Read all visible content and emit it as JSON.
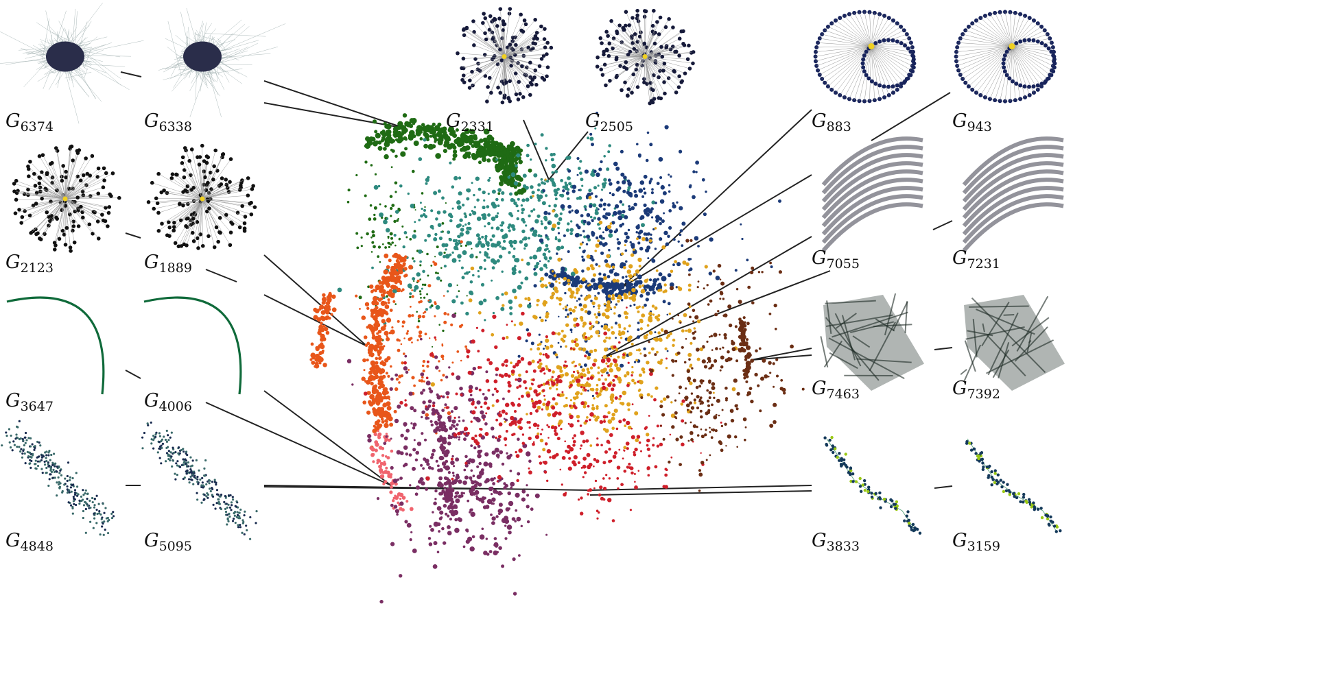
{
  "thumbnails": [
    {
      "id": "g6374",
      "label": "G",
      "sub": "6374",
      "style": "hairball",
      "color": "#2a2d4a"
    },
    {
      "id": "g6338",
      "label": "G",
      "sub": "6338",
      "style": "hairball",
      "color": "#2a2d4a"
    },
    {
      "id": "g2331",
      "label": "G",
      "sub": "2331",
      "style": "star",
      "color": "#161a3a"
    },
    {
      "id": "g2505",
      "label": "G",
      "sub": "2505",
      "style": "star",
      "color": "#161a3a"
    },
    {
      "id": "g883",
      "label": "G",
      "sub": "883",
      "style": "loops",
      "color": "#18245c"
    },
    {
      "id": "g943",
      "label": "G",
      "sub": "943",
      "style": "loops",
      "color": "#18245c"
    },
    {
      "id": "g2123",
      "label": "G",
      "sub": "2123",
      "style": "star",
      "color": "#111111"
    },
    {
      "id": "g1889",
      "label": "G",
      "sub": "1889",
      "style": "star",
      "color": "#111111"
    },
    {
      "id": "g7055",
      "label": "G",
      "sub": "7055",
      "style": "bands",
      "color": "#3a3a48"
    },
    {
      "id": "g7231",
      "label": "G",
      "sub": "7231",
      "style": "bands",
      "color": "#3a3a48"
    },
    {
      "id": "g3647",
      "label": "G",
      "sub": "3647",
      "style": "curve",
      "color": "#0f6a3a"
    },
    {
      "id": "g4006",
      "label": "G",
      "sub": "4006",
      "style": "curve",
      "color": "#0f6a3a"
    },
    {
      "id": "g7463",
      "label": "G",
      "sub": "7463",
      "style": "mesh",
      "color": "#1d2a24"
    },
    {
      "id": "g7392",
      "label": "G",
      "sub": "7392",
      "style": "mesh",
      "color": "#1d2a24"
    },
    {
      "id": "g4848",
      "label": "G",
      "sub": "4848",
      "style": "ribbon",
      "color": "#3a6a6a"
    },
    {
      "id": "g5095",
      "label": "G",
      "sub": "5095",
      "style": "ribbon",
      "color": "#3a6a6a"
    },
    {
      "id": "g3833",
      "label": "G",
      "sub": "3833",
      "style": "chain",
      "color": "#14395a"
    },
    {
      "id": "g3159",
      "label": "G",
      "sub": "3159",
      "style": "chain",
      "color": "#14395a"
    }
  ],
  "cluster_colors": {
    "dark_green": "#1f6b14",
    "teal": "#2e8a7f",
    "navy": "#1b3a78",
    "gold": "#e0a21c",
    "orange": "#e8561a",
    "purple": "#7a2e63",
    "red": "#cf1f2a",
    "brown": "#6b2e14",
    "pink": "#f0646e"
  }
}
